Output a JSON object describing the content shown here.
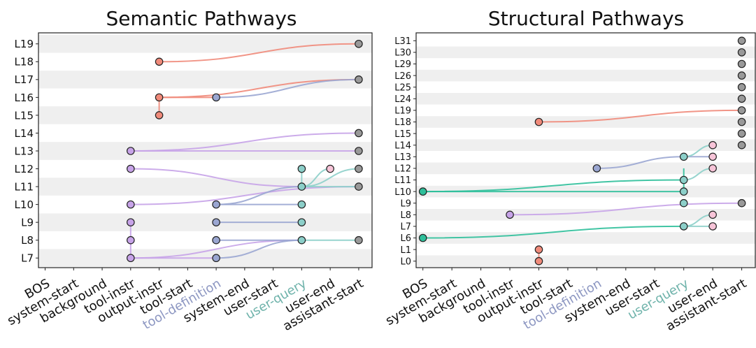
{
  "chart_data": [
    {
      "type": "pathway",
      "title": "Semantic Pathways",
      "categories": [
        "BOS",
        "system-start",
        "background",
        "tool-instr",
        "output-instr",
        "tool-start",
        "tool-definition",
        "system-end",
        "user-start",
        "user-query",
        "user-end",
        "assistant-start"
      ],
      "highlighted_categories": {
        "tool-definition": "#8d97c2",
        "user-query": "#6fb3ab"
      },
      "layers": [
        "L7",
        "L8",
        "L9",
        "L10",
        "L11",
        "L12",
        "L13",
        "L14",
        "L15",
        "L16",
        "L17",
        "L18",
        "L19"
      ],
      "grid": "alternating-row-bands",
      "nodes": [
        {
          "pos": "output-instr",
          "layer": "L18",
          "color": "#f08a7a"
        },
        {
          "pos": "output-instr",
          "layer": "L16",
          "color": "#f08a7a"
        },
        {
          "pos": "output-instr",
          "layer": "L15",
          "color": "#f08a7a"
        },
        {
          "pos": "tool-definition",
          "layer": "L16",
          "color": "#9aa6d1"
        },
        {
          "pos": "tool-instr",
          "layer": "L13",
          "color": "#c7a3e8"
        },
        {
          "pos": "tool-instr",
          "layer": "L12",
          "color": "#c7a3e8"
        },
        {
          "pos": "tool-instr",
          "layer": "L10",
          "color": "#c7a3e8"
        },
        {
          "pos": "tool-instr",
          "layer": "L9",
          "color": "#c7a3e8"
        },
        {
          "pos": "tool-instr",
          "layer": "L8",
          "color": "#c7a3e8"
        },
        {
          "pos": "tool-instr",
          "layer": "L7",
          "color": "#c7a3e8"
        },
        {
          "pos": "tool-definition",
          "layer": "L10",
          "color": "#9aa6d1"
        },
        {
          "pos": "tool-definition",
          "layer": "L9",
          "color": "#9aa6d1"
        },
        {
          "pos": "tool-definition",
          "layer": "L8",
          "color": "#9aa6d1"
        },
        {
          "pos": "tool-definition",
          "layer": "L7",
          "color": "#9aa6d1"
        },
        {
          "pos": "user-query",
          "layer": "L12",
          "color": "#8ccfc9"
        },
        {
          "pos": "user-query",
          "layer": "L11",
          "color": "#8ccfc9"
        },
        {
          "pos": "user-query",
          "layer": "L10",
          "color": "#8ccfc9"
        },
        {
          "pos": "user-query",
          "layer": "L9",
          "color": "#8ccfc9"
        },
        {
          "pos": "user-query",
          "layer": "L8",
          "color": "#8ccfc9"
        },
        {
          "pos": "user-end",
          "layer": "L12",
          "color": "#f7c4d8"
        },
        {
          "pos": "assistant-start",
          "layer": "L19",
          "color": "#999999"
        },
        {
          "pos": "assistant-start",
          "layer": "L17",
          "color": "#999999"
        },
        {
          "pos": "assistant-start",
          "layer": "L14",
          "color": "#999999"
        },
        {
          "pos": "assistant-start",
          "layer": "L13",
          "color": "#999999"
        },
        {
          "pos": "assistant-start",
          "layer": "L12",
          "color": "#999999"
        },
        {
          "pos": "assistant-start",
          "layer": "L11",
          "color": "#999999"
        },
        {
          "pos": "assistant-start",
          "layer": "L8",
          "color": "#999999"
        }
      ],
      "edges": [
        {
          "from": [
            "output-instr",
            "L18"
          ],
          "to": [
            "assistant-start",
            "L19"
          ],
          "color": "#f08a7a"
        },
        {
          "from": [
            "output-instr",
            "L16"
          ],
          "to": [
            "assistant-start",
            "L17"
          ],
          "color": "#f08a7a"
        },
        {
          "from": [
            "output-instr",
            "L16"
          ],
          "to": [
            "tool-definition",
            "L16"
          ],
          "color": "#f08a7a"
        },
        {
          "from": [
            "output-instr",
            "L15"
          ],
          "to": [
            "output-instr",
            "L16"
          ],
          "color": "#f08a7a"
        },
        {
          "from": [
            "tool-definition",
            "L16"
          ],
          "to": [
            "assistant-start",
            "L17"
          ],
          "color": "#9aa6d1"
        },
        {
          "from": [
            "tool-instr",
            "L13"
          ],
          "to": [
            "assistant-start",
            "L14"
          ],
          "color": "#c7a3e8"
        },
        {
          "from": [
            "tool-instr",
            "L13"
          ],
          "to": [
            "assistant-start",
            "L13"
          ],
          "color": "#c7a3e8"
        },
        {
          "from": [
            "tool-instr",
            "L12"
          ],
          "to": [
            "user-query",
            "L11"
          ],
          "color": "#c7a3e8"
        },
        {
          "from": [
            "tool-instr",
            "L10"
          ],
          "to": [
            "assistant-start",
            "L11"
          ],
          "color": "#c7a3e8"
        },
        {
          "from": [
            "tool-instr",
            "L7"
          ],
          "to": [
            "tool-instr",
            "L8"
          ],
          "color": "#c7a3e8"
        },
        {
          "from": [
            "tool-instr",
            "L8"
          ],
          "to": [
            "tool-instr",
            "L9"
          ],
          "color": "#c7a3e8"
        },
        {
          "from": [
            "tool-instr",
            "L7"
          ],
          "to": [
            "tool-definition",
            "L7"
          ],
          "color": "#c7a3e8"
        },
        {
          "from": [
            "tool-instr",
            "L7"
          ],
          "to": [
            "user-query",
            "L8"
          ],
          "color": "#c7a3e8"
        },
        {
          "from": [
            "tool-definition",
            "L10"
          ],
          "to": [
            "user-query",
            "L11"
          ],
          "color": "#9aa6d1"
        },
        {
          "from": [
            "tool-definition",
            "L10"
          ],
          "to": [
            "user-query",
            "L10"
          ],
          "color": "#9aa6d1"
        },
        {
          "from": [
            "tool-definition",
            "L9"
          ],
          "to": [
            "user-query",
            "L9"
          ],
          "color": "#9aa6d1"
        },
        {
          "from": [
            "tool-definition",
            "L8"
          ],
          "to": [
            "user-query",
            "L8"
          ],
          "color": "#9aa6d1"
        },
        {
          "from": [
            "tool-definition",
            "L7"
          ],
          "to": [
            "user-query",
            "L8"
          ],
          "color": "#9aa6d1"
        },
        {
          "from": [
            "user-query",
            "L11"
          ],
          "to": [
            "user-query",
            "L12"
          ],
          "color": "#8ccfc9"
        },
        {
          "from": [
            "user-query",
            "L11"
          ],
          "to": [
            "user-end",
            "L12"
          ],
          "color": "#8ccfc9"
        },
        {
          "from": [
            "user-query",
            "L11"
          ],
          "to": [
            "assistant-start",
            "L12"
          ],
          "color": "#8ccfc9"
        },
        {
          "from": [
            "user-query",
            "L11"
          ],
          "to": [
            "assistant-start",
            "L11"
          ],
          "color": "#8ccfc9"
        },
        {
          "from": [
            "user-query",
            "L8"
          ],
          "to": [
            "assistant-start",
            "L8"
          ],
          "color": "#8ccfc9"
        }
      ]
    },
    {
      "type": "pathway",
      "title": "Structural Pathways",
      "categories": [
        "BOS",
        "system-start",
        "background",
        "tool-instr",
        "output-instr",
        "tool-start",
        "tool-definition",
        "system-end",
        "user-start",
        "user-query",
        "user-end",
        "assistant-start"
      ],
      "highlighted_categories": {
        "tool-definition": "#8d97c2",
        "user-query": "#6fb3ab"
      },
      "layers": [
        "L0",
        "L1",
        "L6",
        "L7",
        "L8",
        "L9",
        "L10",
        "L11",
        "L12",
        "L13",
        "L14",
        "L15",
        "L18",
        "L19",
        "L24",
        "L25",
        "L26",
        "L29",
        "L30",
        "L31"
      ],
      "grid": "alternating-row-bands",
      "nodes": [
        {
          "pos": "BOS",
          "layer": "L10",
          "color": "#2ebf9a"
        },
        {
          "pos": "BOS",
          "layer": "L6",
          "color": "#2ebf9a"
        },
        {
          "pos": "output-instr",
          "layer": "L18",
          "color": "#f08a7a"
        },
        {
          "pos": "output-instr",
          "layer": "L1",
          "color": "#f08a7a"
        },
        {
          "pos": "output-instr",
          "layer": "L0",
          "color": "#f08a7a"
        },
        {
          "pos": "tool-instr",
          "layer": "L8",
          "color": "#c7a3e8"
        },
        {
          "pos": "tool-definition",
          "layer": "L12",
          "color": "#9aa6d1"
        },
        {
          "pos": "user-query",
          "layer": "L13",
          "color": "#8ccfc9"
        },
        {
          "pos": "user-query",
          "layer": "L11",
          "color": "#8ccfc9"
        },
        {
          "pos": "user-query",
          "layer": "L10",
          "color": "#8ccfc9"
        },
        {
          "pos": "user-query",
          "layer": "L9",
          "color": "#8ccfc9"
        },
        {
          "pos": "user-query",
          "layer": "L7",
          "color": "#8ccfc9"
        },
        {
          "pos": "user-end",
          "layer": "L14",
          "color": "#f7c4d8"
        },
        {
          "pos": "user-end",
          "layer": "L13",
          "color": "#f7c4d8"
        },
        {
          "pos": "user-end",
          "layer": "L12",
          "color": "#f7c4d8"
        },
        {
          "pos": "user-end",
          "layer": "L8",
          "color": "#f7c4d8"
        },
        {
          "pos": "user-end",
          "layer": "L7",
          "color": "#f7c4d8"
        },
        {
          "pos": "assistant-start",
          "layer": "L31",
          "color": "#999999"
        },
        {
          "pos": "assistant-start",
          "layer": "L30",
          "color": "#999999"
        },
        {
          "pos": "assistant-start",
          "layer": "L29",
          "color": "#999999"
        },
        {
          "pos": "assistant-start",
          "layer": "L26",
          "color": "#999999"
        },
        {
          "pos": "assistant-start",
          "layer": "L25",
          "color": "#999999"
        },
        {
          "pos": "assistant-start",
          "layer": "L24",
          "color": "#999999"
        },
        {
          "pos": "assistant-start",
          "layer": "L19",
          "color": "#999999"
        },
        {
          "pos": "assistant-start",
          "layer": "L18",
          "color": "#999999"
        },
        {
          "pos": "assistant-start",
          "layer": "L15",
          "color": "#999999"
        },
        {
          "pos": "assistant-start",
          "layer": "L14",
          "color": "#999999"
        },
        {
          "pos": "assistant-start",
          "layer": "L9",
          "color": "#999999"
        }
      ],
      "edges": [
        {
          "from": [
            "output-instr",
            "L18"
          ],
          "to": [
            "assistant-start",
            "L19"
          ],
          "color": "#f08a7a"
        },
        {
          "from": [
            "output-instr",
            "L0"
          ],
          "to": [
            "output-instr",
            "L1"
          ],
          "color": "#f08a7a"
        },
        {
          "from": [
            "tool-definition",
            "L12"
          ],
          "to": [
            "user-query",
            "L13"
          ],
          "color": "#9aa6d1"
        },
        {
          "from": [
            "user-query",
            "L13"
          ],
          "to": [
            "user-end",
            "L13"
          ],
          "color": "#9aa6d1"
        },
        {
          "from": [
            "user-query",
            "L13"
          ],
          "to": [
            "user-end",
            "L14"
          ],
          "color": "#8ccfc9"
        },
        {
          "from": [
            "BOS",
            "L10"
          ],
          "to": [
            "user-query",
            "L11"
          ],
          "color": "#2ebf9a"
        },
        {
          "from": [
            "BOS",
            "L10"
          ],
          "to": [
            "user-query",
            "L10"
          ],
          "color": "#2ebf9a"
        },
        {
          "from": [
            "user-query",
            "L11"
          ],
          "to": [
            "user-query",
            "L12"
          ],
          "color": "#2ebf9a"
        },
        {
          "from": [
            "user-query",
            "L11"
          ],
          "to": [
            "user-end",
            "L12"
          ],
          "color": "#8ccfc9"
        },
        {
          "from": [
            "user-query",
            "L10"
          ],
          "to": [
            "user-query",
            "L11"
          ],
          "color": "#2ebf9a"
        },
        {
          "from": [
            "tool-instr",
            "L8"
          ],
          "to": [
            "assistant-start",
            "L9"
          ],
          "color": "#c7a3e8"
        },
        {
          "from": [
            "BOS",
            "L6"
          ],
          "to": [
            "user-query",
            "L7"
          ],
          "color": "#2ebf9a"
        },
        {
          "from": [
            "user-query",
            "L7"
          ],
          "to": [
            "user-end",
            "L7"
          ],
          "color": "#8ccfc9"
        },
        {
          "from": [
            "user-query",
            "L7"
          ],
          "to": [
            "user-end",
            "L8"
          ],
          "color": "#8ccfc9"
        }
      ]
    }
  ]
}
